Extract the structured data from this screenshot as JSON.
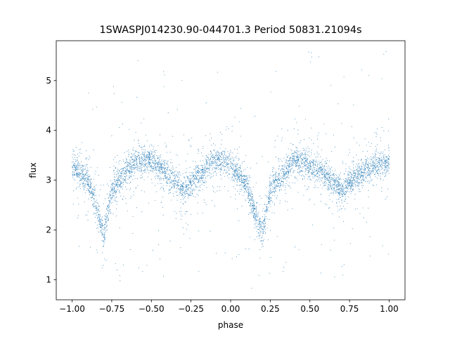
{
  "chart_data": {
    "type": "scatter",
    "title": "1SWASPJ014230.90-044701.3 Period 50831.21094s",
    "xlabel": "phase",
    "ylabel": "flux",
    "xlim": [
      -1.1,
      1.1
    ],
    "ylim": [
      0.6,
      5.8
    ],
    "xticks": [
      -1.0,
      -0.75,
      -0.5,
      -0.25,
      0.0,
      0.25,
      0.5,
      0.75,
      1.0
    ],
    "xtick_labels": [
      "−1.00",
      "−0.75",
      "−0.50",
      "−0.25",
      "0.00",
      "0.25",
      "0.50",
      "0.75",
      "1.00"
    ],
    "yticks": [
      1,
      2,
      3,
      4,
      5
    ],
    "ytick_labels": [
      "1",
      "2",
      "3",
      "4",
      "5"
    ],
    "grid": false,
    "marker_color": "#1f77b4",
    "series": [
      {
        "x": [
          -1.0,
          -0.9,
          -0.85,
          -0.8,
          -0.75,
          -0.6,
          -0.5,
          -0.4,
          -0.3,
          -0.2,
          -0.1,
          0.0,
          0.1,
          0.15,
          0.2,
          0.25,
          0.4,
          0.5,
          0.6,
          0.7,
          0.8,
          0.9,
          1.0
        ],
        "y": [
          3.3,
          3.0,
          2.5,
          1.9,
          2.8,
          3.4,
          3.4,
          3.1,
          2.8,
          3.1,
          3.4,
          3.3,
          2.9,
          2.4,
          1.9,
          2.8,
          3.4,
          3.3,
          3.1,
          2.8,
          3.1,
          3.3,
          3.35
        ]
      }
    ]
  }
}
